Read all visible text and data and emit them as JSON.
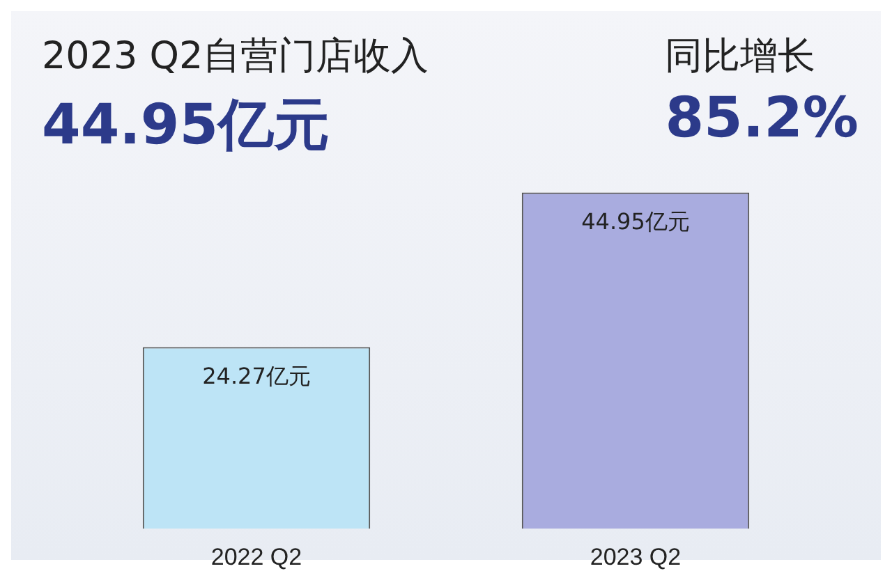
{
  "chart_data": {
    "type": "bar",
    "title": "2023 Q2自营门店收入",
    "subtitle": "44.95亿元",
    "annotations": [
      "同比增长",
      "85.2%"
    ],
    "categories": [
      "2022 Q2",
      "2023 Q2"
    ],
    "values": [
      24.27,
      44.95
    ],
    "value_labels": [
      "24.27亿元",
      "44.95亿元"
    ],
    "colors": [
      "#bde4f6",
      "#a9acdf"
    ],
    "grid": false,
    "legend": false
  }
}
